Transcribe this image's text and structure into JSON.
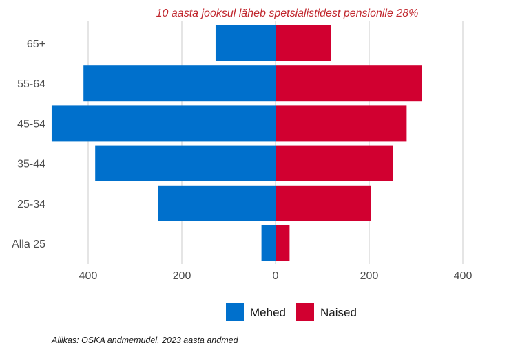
{
  "chart_data": {
    "type": "bar",
    "orientation": "horizontal",
    "title": "10 aasta jooksul läheb spetsialistidest pensionile 28%",
    "categories": [
      "Alla 25",
      "25-34",
      "35-44",
      "45-54",
      "55-64",
      "65+"
    ],
    "series": [
      {
        "name": "Mehed",
        "values": [
          -30,
          -250,
          -385,
          -478,
          -410,
          -128
        ],
        "color": "#0070cc"
      },
      {
        "name": "Naised",
        "values": [
          30,
          203,
          250,
          280,
          312,
          118
        ],
        "color": "#d10030"
      }
    ],
    "x_ticks": [
      -400,
      -200,
      0,
      200,
      400
    ],
    "x_tick_labels": [
      "400",
      "200",
      "0",
      "200",
      "400"
    ],
    "xlim": [
      -480,
      480
    ],
    "grid": "vertical major",
    "legend": "bottom",
    "caption": "Allikas: OSKA andmemudel, 2023 aasta andmed",
    "title_color": "#c0262d"
  }
}
